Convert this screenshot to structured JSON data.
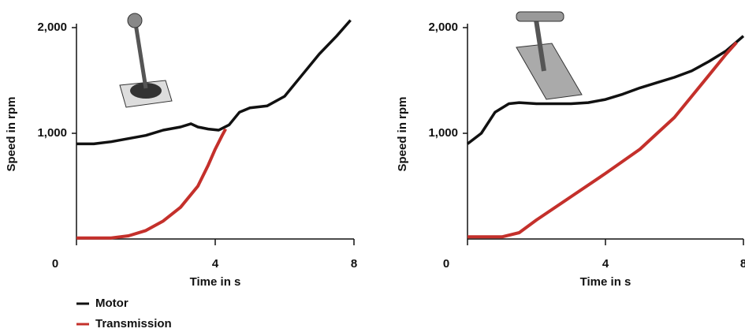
{
  "chart_data": [
    {
      "type": "line",
      "x_label": "Time in s",
      "y_label": "Speed in rpm",
      "xlim": [
        0,
        8
      ],
      "ylim": [
        0,
        2000
      ],
      "xticks": [
        0,
        4,
        8
      ],
      "yticks": [
        {
          "value": 1000,
          "label": "1,000"
        },
        {
          "value": 2000,
          "label": "2,000"
        }
      ],
      "series": [
        {
          "name": "Motor",
          "color": "#111111",
          "x": [
            0,
            0.5,
            1,
            1.5,
            2,
            2.5,
            3,
            3.3,
            3.5,
            3.8,
            4.1,
            4.4,
            4.7,
            5,
            5.5,
            6,
            6.5,
            7,
            7.5,
            7.9
          ],
          "values": [
            900,
            900,
            920,
            950,
            980,
            1030,
            1060,
            1090,
            1060,
            1040,
            1030,
            1080,
            1200,
            1240,
            1260,
            1350,
            1550,
            1750,
            1920,
            2070
          ]
        },
        {
          "name": "Transmission",
          "color": "#c4302b",
          "x": [
            0,
            1,
            1.5,
            2,
            2.5,
            3,
            3.5,
            3.8,
            4,
            4.2,
            4.3
          ],
          "values": [
            10,
            10,
            30,
            80,
            170,
            300,
            500,
            700,
            850,
            980,
            1040
          ]
        }
      ]
    },
    {
      "type": "line",
      "x_label": "Time in s",
      "y_label": "Speed in rpm",
      "xlim": [
        0,
        8
      ],
      "ylim": [
        0,
        2000
      ],
      "xticks": [
        0,
        4,
        8
      ],
      "yticks": [
        {
          "value": 1000,
          "label": "1,000"
        },
        {
          "value": 2000,
          "label": "2,000"
        }
      ],
      "series": [
        {
          "color": "#111111",
          "x": [
            0,
            0.4,
            0.8,
            1.2,
            1.5,
            2,
            3,
            3.5,
            4,
            4.5,
            5,
            5.5,
            6,
            6.5,
            7,
            7.5,
            8
          ],
          "values": [
            900,
            1000,
            1200,
            1280,
            1290,
            1280,
            1280,
            1290,
            1320,
            1370,
            1430,
            1480,
            1530,
            1590,
            1680,
            1780,
            1920
          ]
        },
        {
          "color": "#c4302b",
          "x": [
            0,
            1,
            1.5,
            2,
            3,
            4,
            5,
            5.5,
            6,
            6.5,
            7,
            7.5,
            7.8
          ],
          "values": [
            20,
            20,
            60,
            180,
            400,
            620,
            850,
            1000,
            1150,
            1350,
            1550,
            1750,
            1860
          ]
        }
      ]
    }
  ]
}
